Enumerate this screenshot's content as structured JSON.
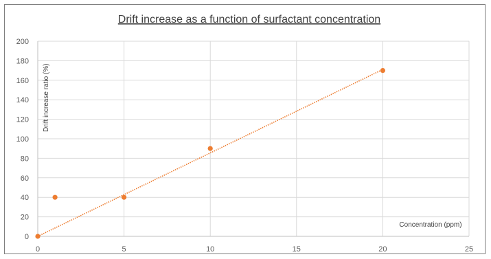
{
  "chart_data": {
    "type": "scatter",
    "title": "Drift increase as a function of surfactant concentration",
    "xlabel": "Concentration (ppm)",
    "ylabel": "Drift increase ratio (%)",
    "xlim": [
      0,
      25
    ],
    "ylim": [
      0,
      200
    ],
    "x_ticks": [
      0,
      5,
      10,
      15,
      20,
      25
    ],
    "y_ticks": [
      0,
      20,
      40,
      60,
      80,
      100,
      120,
      140,
      160,
      180,
      200
    ],
    "grid": true,
    "series": [
      {
        "points": [
          {
            "x": 0,
            "y": 0
          },
          {
            "x": 1,
            "y": 40
          },
          {
            "x": 5,
            "y": 40
          },
          {
            "x": 10,
            "y": 90
          },
          {
            "x": 20,
            "y": 170
          }
        ],
        "color": "#ed7d31",
        "trendline": {
          "type": "linear",
          "from": {
            "x": 0,
            "y": 0
          },
          "to": {
            "x": 20,
            "y": 171
          },
          "style": "dotted"
        }
      }
    ]
  }
}
